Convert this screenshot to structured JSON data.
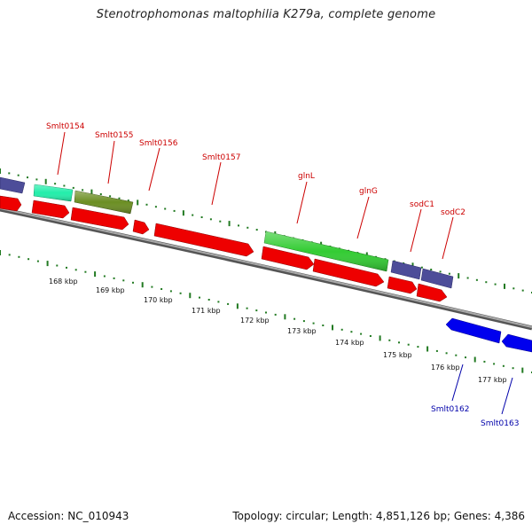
{
  "title": "Stenotrophomonas maltophilia K279a, complete genome",
  "footer": {
    "accession": "Accession: NC_010943",
    "summary": "Topology: circular; Length: 4,851,126 bp; Genes: 4,386"
  },
  "colors": {
    "background": "#ffffff",
    "backbone": "#888888",
    "label_forward": "#cc0000",
    "label_reverse": "#0000aa",
    "gc_dots": "#227a22",
    "cds_red": "#ee0000",
    "cds_blue": "#0000ee",
    "cds_purple": "#4d4d99",
    "cds_teal": "#22eeaa",
    "cds_olive": "#6b8e23",
    "cds_green": "#33cc33"
  },
  "gene_labels": [
    {
      "id": "label-smlt0154",
      "text": "Smlt0154",
      "strand": "forward"
    },
    {
      "id": "label-smlt0155",
      "text": "Smlt0155",
      "strand": "forward"
    },
    {
      "id": "label-smlt0156",
      "text": "Smlt0156",
      "strand": "forward"
    },
    {
      "id": "label-smlt0157",
      "text": "Smlt0157",
      "strand": "forward"
    },
    {
      "id": "label-glnl",
      "text": "glnL",
      "strand": "forward"
    },
    {
      "id": "label-glng",
      "text": "glnG",
      "strand": "forward"
    },
    {
      "id": "label-sodc1",
      "text": "sodC1",
      "strand": "forward"
    },
    {
      "id": "label-sodc2",
      "text": "sodC2",
      "strand": "forward"
    },
    {
      "id": "label-smlt0162",
      "text": "Smlt0162",
      "strand": "reverse"
    },
    {
      "id": "label-smlt0163",
      "text": "Smlt0163",
      "strand": "reverse"
    }
  ],
  "ticks": [
    "168 kbp",
    "169 kbp",
    "170 kbp",
    "171 kbp",
    "172 kbp",
    "173 kbp",
    "174 kbp",
    "175 kbp",
    "176 kbp",
    "177 kbp"
  ]
}
